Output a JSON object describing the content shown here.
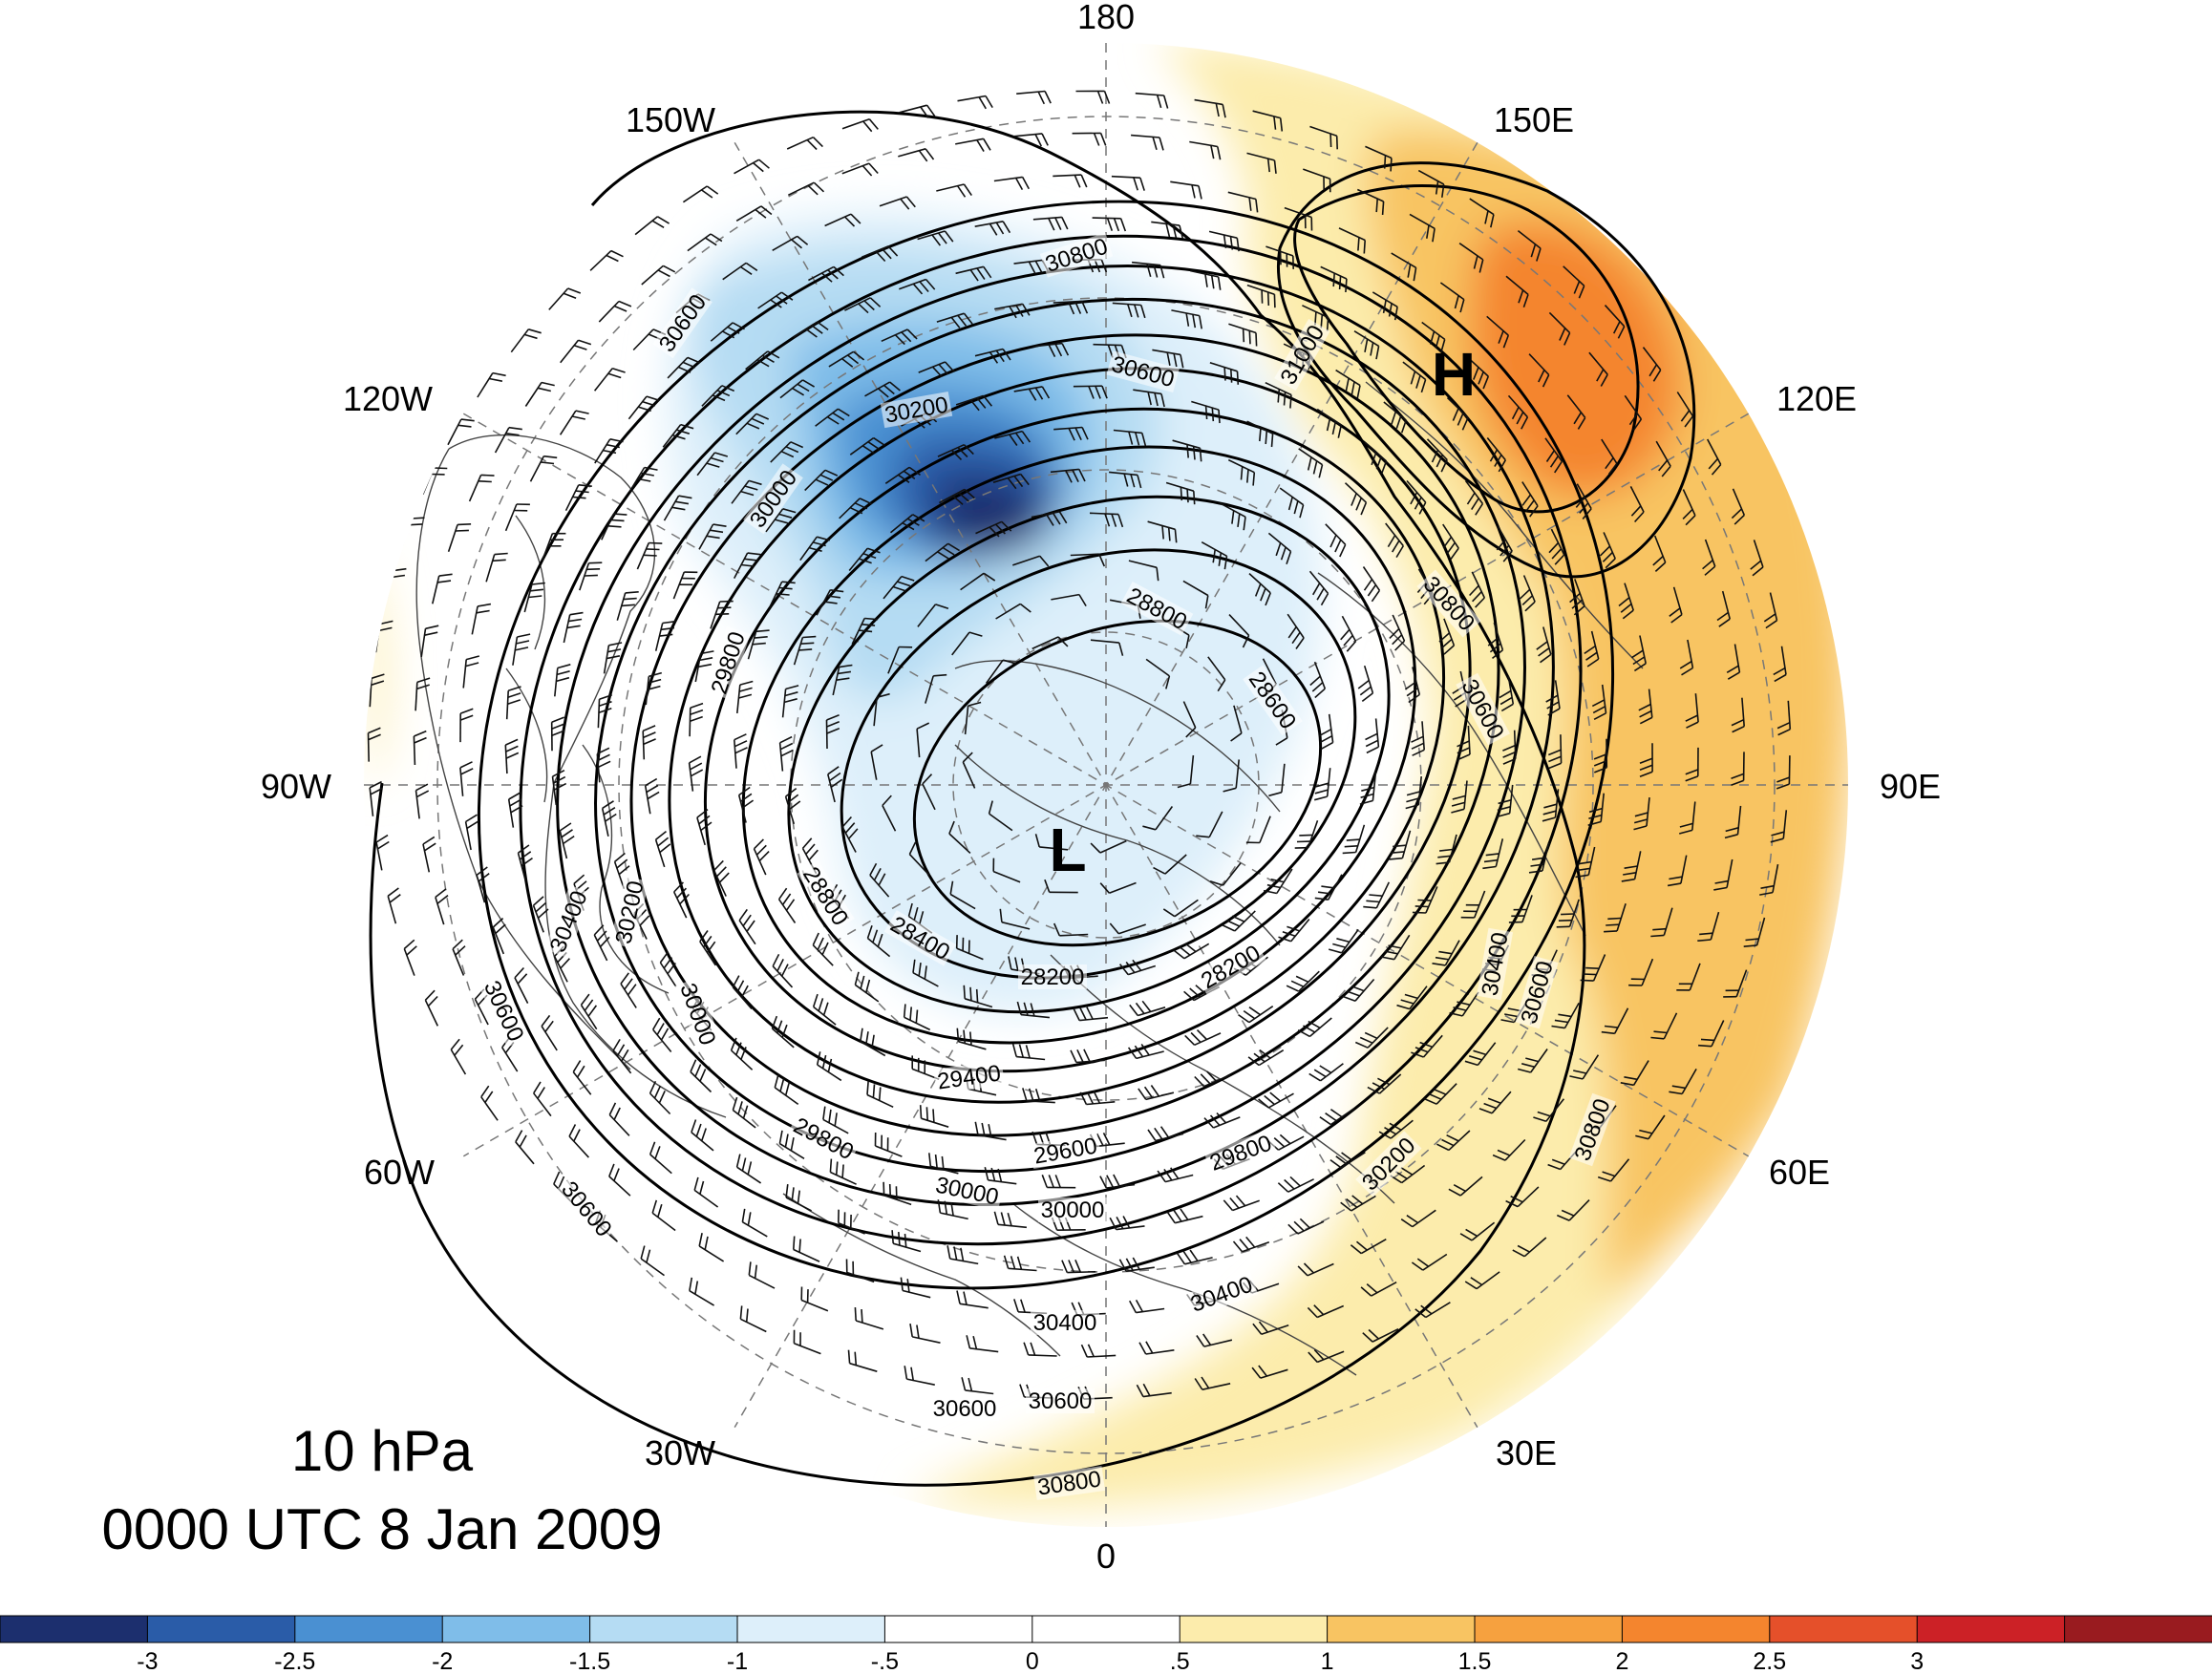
{
  "title": {
    "line1": "10 hPa",
    "line2": "0000 UTC 8 Jan 2009"
  },
  "longitude_labels": [
    {
      "key": "180",
      "text": "180"
    },
    {
      "key": "150E",
      "text": "150E"
    },
    {
      "key": "120E",
      "text": "120E"
    },
    {
      "key": "90E",
      "text": "90E"
    },
    {
      "key": "60E",
      "text": "60E"
    },
    {
      "key": "30E",
      "text": "30E"
    },
    {
      "key": "0",
      "text": "0"
    },
    {
      "key": "30W",
      "text": "30W"
    },
    {
      "key": "60W",
      "text": "60W"
    },
    {
      "key": "90W",
      "text": "90W"
    },
    {
      "key": "120W",
      "text": "120W"
    },
    {
      "key": "150W",
      "text": "150W"
    }
  ],
  "pressure_centers": [
    {
      "key": "high",
      "text": "H"
    },
    {
      "key": "low",
      "text": "L"
    }
  ],
  "contour_labels": [
    "31000",
    "30800",
    "30800",
    "30800",
    "30800",
    "30600",
    "30600",
    "30600",
    "30600",
    "30600",
    "30600",
    "30600",
    "30600",
    "30400",
    "30400",
    "30400",
    "30400",
    "30200",
    "30200",
    "30200",
    "30000",
    "30000",
    "30000",
    "30000",
    "29800",
    "29800",
    "29800",
    "29600",
    "29400",
    "28800",
    "28800",
    "28600",
    "28400",
    "28200",
    "28200"
  ],
  "colorbar": {
    "colors": [
      "#1c2f6e",
      "#2a5ca8",
      "#4a90d2",
      "#7fbde9",
      "#b5dcf3",
      "#ddeffa",
      "#ffffff",
      "#ffffff",
      "#fcecac",
      "#f8c462",
      "#f6a13f",
      "#f4852e",
      "#e5502a",
      "#cc2126",
      "#991b1f"
    ],
    "ticks": [
      "-3",
      "-2.5",
      "-2",
      "-1.5",
      "-1",
      "-.5",
      "0",
      ".5",
      "1",
      "1.5",
      "2",
      "2.5",
      "3"
    ]
  }
}
